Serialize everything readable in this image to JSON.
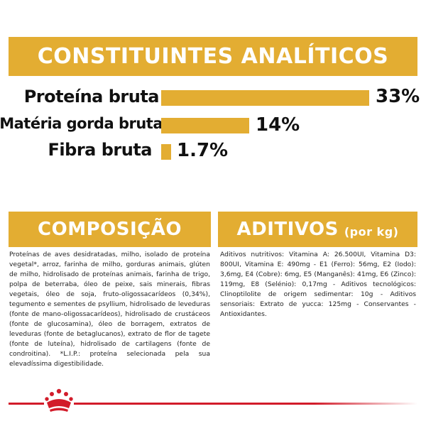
{
  "top_banner": {
    "title": "CONSTITUINTES ANALÍTICOS"
  },
  "nutrients": [
    {
      "label": "Proteína bruta",
      "value": "33%",
      "fraction": 0.33
    },
    {
      "label": "Matéria gorda bruta",
      "value": "14%",
      "fraction": 0.14
    },
    {
      "label": "Fibra bruta",
      "value": "1.7%",
      "fraction": 0.017
    }
  ],
  "composition": {
    "title": "COMPOSIÇÃO",
    "text": "Proteínas de aves desidratadas, milho, isolado de proteína vegetal*, arroz, farinha de milho, gorduras animais, glúten de milho, hidrolisado de proteínas animais, farinha de trigo, polpa de beterraba, óleo de peixe, sais minerais, fibras vegetais, óleo de soja, fruto-oligossacarídeos (0,34%), tegumento e sementes de psyllium, hidrolisado de leveduras (fonte de mano-oligossacarídeos), hidrolisado de crustáceos (fonte de glucosamina), óleo de borragem, extratos de leveduras (fonte de betaglucanos), extrato de flor de tagete (fonte de luteína), hidrolisado de cartilagens (fonte de condroitina). *L.I.P.: proteína selecionada pela sua elevadíssima digestibilidade."
  },
  "additives": {
    "title": "ADITIVOS",
    "unit": "(por kg)",
    "text": "Aditivos nutritivos: Vitamina A: 26.500UI, Vitamina D3: 800UI, Vitamina E: 490mg - E1 (Ferro): 56mg, E2 (Iodo): 3,6mg, E4 (Cobre): 6mg, E5 (Manganês): 41mg, E6 (Zinco): 119mg, E8 (Selénio): 0,17mg - Aditivos tecnológicos: Clinoptilolite de origem sedimentar: 10g - Aditivos sensoriais: Extrato de yucca: 125mg - Conservantes - Antioxidantes."
  },
  "colors": {
    "accent": "#e3ad32",
    "brand_red": "#d21c2a"
  },
  "footer": {
    "logo_icon": "royal-canin-crown-icon"
  }
}
